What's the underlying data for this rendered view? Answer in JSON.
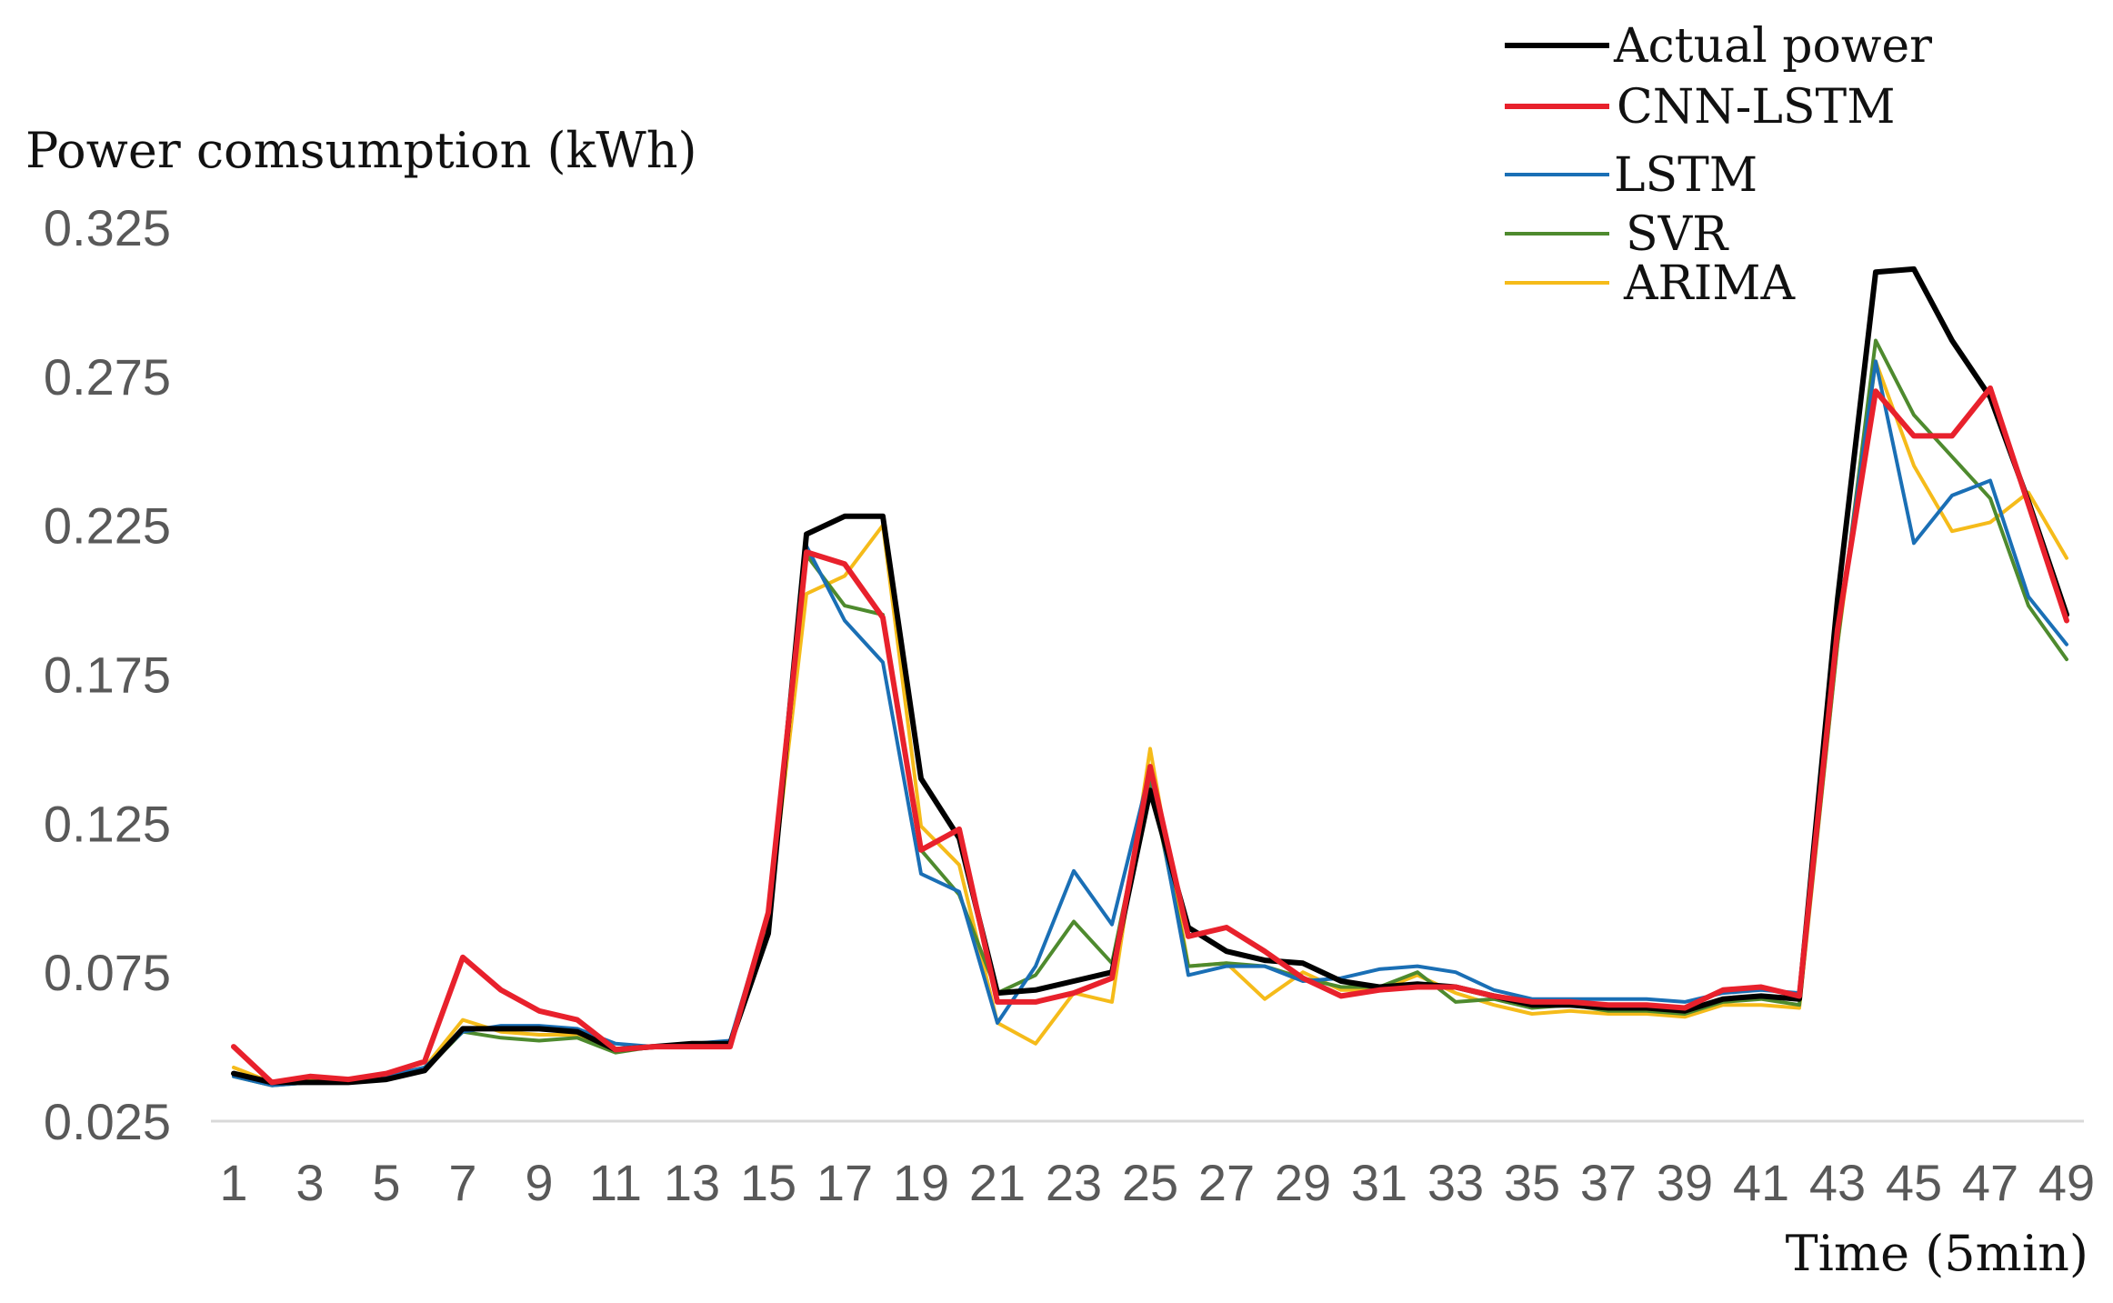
{
  "chart_data": {
    "type": "line",
    "ylabel": "Power comsumption (kWh)",
    "xlabel": "Time (5min)",
    "ylim": [
      0.025,
      0.325
    ],
    "yticks": [
      "0.025",
      "0.075",
      "0.125",
      "0.175",
      "0.225",
      "0.275",
      "0.325"
    ],
    "x": [
      1,
      2,
      3,
      4,
      5,
      6,
      7,
      8,
      9,
      10,
      11,
      12,
      13,
      14,
      15,
      16,
      17,
      18,
      19,
      20,
      21,
      22,
      23,
      24,
      25,
      26,
      27,
      28,
      29,
      30,
      31,
      32,
      33,
      34,
      35,
      36,
      37,
      38,
      39,
      40,
      41,
      42,
      43,
      44,
      45,
      46,
      47,
      48,
      49
    ],
    "xtick_labels": [
      "1",
      "3",
      "5",
      "7",
      "9",
      "11",
      "13",
      "15",
      "17",
      "19",
      "21",
      "23",
      "25",
      "27",
      "29",
      "31",
      "33",
      "35",
      "37",
      "39",
      "41",
      "43",
      "45",
      "47",
      "49"
    ],
    "grid": false,
    "legend": "top-right",
    "series": [
      {
        "name": "Actual power",
        "color": "#000000",
        "values": [
          0.041,
          0.038,
          0.038,
          0.038,
          0.039,
          0.042,
          0.056,
          0.056,
          0.056,
          0.055,
          0.049,
          0.05,
          0.051,
          0.051,
          0.088,
          0.222,
          0.228,
          0.228,
          0.14,
          0.12,
          0.068,
          0.069,
          0.072,
          0.075,
          0.136,
          0.09,
          0.082,
          0.079,
          0.078,
          0.072,
          0.07,
          0.071,
          0.07,
          0.067,
          0.064,
          0.064,
          0.063,
          0.063,
          0.062,
          0.066,
          0.067,
          0.066,
          0.2,
          0.31,
          0.311,
          0.287,
          0.268,
          0.233,
          0.195
        ]
      },
      {
        "name": "CNN-LSTM",
        "color": "#e8212c",
        "values": [
          0.05,
          0.038,
          0.04,
          0.039,
          0.041,
          0.045,
          0.08,
          0.069,
          0.062,
          0.059,
          0.049,
          0.05,
          0.05,
          0.05,
          0.095,
          0.216,
          0.212,
          0.194,
          0.116,
          0.123,
          0.065,
          0.065,
          0.068,
          0.073,
          0.144,
          0.087,
          0.09,
          0.082,
          0.073,
          0.067,
          0.069,
          0.07,
          0.07,
          0.067,
          0.065,
          0.065,
          0.064,
          0.064,
          0.063,
          0.069,
          0.07,
          0.067,
          0.19,
          0.27,
          0.255,
          0.255,
          0.271,
          0.232,
          0.193
        ]
      },
      {
        "name": "LSTM",
        "color": "#1a6fb5",
        "values": [
          0.04,
          0.037,
          0.038,
          0.038,
          0.04,
          0.043,
          0.055,
          0.057,
          0.057,
          0.056,
          0.051,
          0.05,
          0.051,
          0.052,
          0.095,
          0.218,
          0.193,
          0.179,
          0.108,
          0.102,
          0.058,
          0.077,
          0.109,
          0.091,
          0.143,
          0.074,
          0.077,
          0.077,
          0.072,
          0.073,
          0.076,
          0.077,
          0.075,
          0.069,
          0.066,
          0.066,
          0.066,
          0.066,
          0.065,
          0.068,
          0.069,
          0.068,
          0.188,
          0.28,
          0.219,
          0.235,
          0.24,
          0.201,
          0.185
        ]
      },
      {
        "name": "SVR",
        "color": "#4e8a2e",
        "values": [
          0.04,
          0.037,
          0.038,
          0.038,
          0.039,
          0.042,
          0.055,
          0.053,
          0.052,
          0.053,
          0.048,
          0.05,
          0.051,
          0.051,
          0.09,
          0.215,
          0.198,
          0.195,
          0.116,
          0.101,
          0.068,
          0.074,
          0.092,
          0.078,
          0.14,
          0.077,
          0.078,
          0.077,
          0.073,
          0.07,
          0.07,
          0.075,
          0.065,
          0.066,
          0.063,
          0.064,
          0.062,
          0.062,
          0.061,
          0.065,
          0.066,
          0.064,
          0.185,
          0.287,
          0.262,
          0.248,
          0.234,
          0.198,
          0.18
        ]
      },
      {
        "name": "ARIMA",
        "color": "#f5bb1a",
        "values": [
          0.043,
          0.038,
          0.039,
          0.038,
          0.04,
          0.043,
          0.059,
          0.055,
          0.054,
          0.054,
          0.049,
          0.05,
          0.05,
          0.051,
          0.092,
          0.202,
          0.208,
          0.225,
          0.124,
          0.111,
          0.058,
          0.051,
          0.068,
          0.065,
          0.15,
          0.077,
          0.078,
          0.066,
          0.075,
          0.069,
          0.069,
          0.074,
          0.068,
          0.064,
          0.061,
          0.062,
          0.061,
          0.061,
          0.06,
          0.064,
          0.064,
          0.063,
          0.185,
          0.28,
          0.245,
          0.223,
          0.226,
          0.236,
          0.214
        ]
      }
    ]
  }
}
